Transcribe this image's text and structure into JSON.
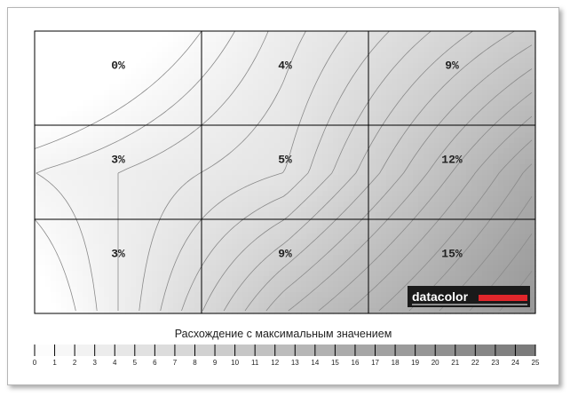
{
  "chart_data": {
    "type": "heatmap",
    "title": "",
    "rows": 3,
    "cols": 3,
    "values": [
      [
        0,
        4,
        9
      ],
      [
        3,
        5,
        12
      ],
      [
        3,
        9,
        15
      ]
    ],
    "cell_labels": [
      [
        "0%",
        "4%",
        "9%"
      ],
      [
        "3%",
        "5%",
        "12%"
      ],
      [
        "3%",
        "9%",
        "15%"
      ]
    ],
    "contours": true,
    "legend": {
      "title": "Расхождение с максимальным значением",
      "min": 0,
      "max": 25,
      "ticks": [
        "0",
        "1",
        "2",
        "3",
        "4",
        "5",
        "6",
        "7",
        "8",
        "9",
        "10",
        "11",
        "12",
        "13",
        "14",
        "15",
        "16",
        "17",
        "18",
        "19",
        "20",
        "21",
        "22",
        "23",
        "24",
        "25"
      ],
      "placement": "bottom"
    },
    "logo": {
      "text": "datacolor",
      "background": "#1a1a1a",
      "accent": "#e0262b"
    }
  }
}
